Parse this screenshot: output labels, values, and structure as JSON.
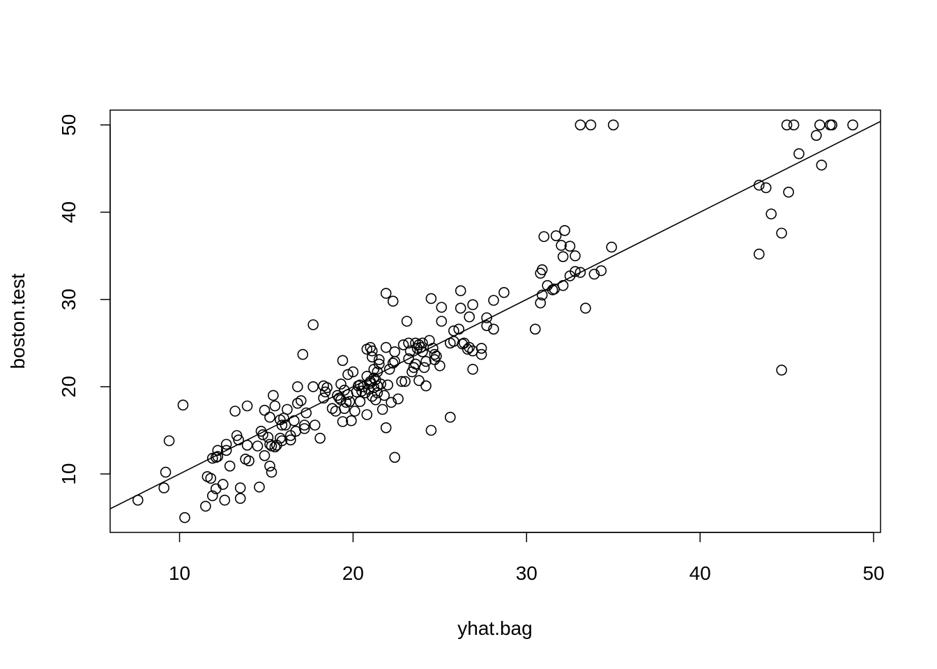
{
  "chart_data": {
    "type": "scatter",
    "title": "",
    "xlabel": "yhat.bag",
    "ylabel": "boston.test",
    "xlim": [
      6,
      50.4
    ],
    "ylim": [
      3.3,
      51.7
    ],
    "xticks": [
      10,
      20,
      30,
      40,
      50
    ],
    "yticks": [
      10,
      20,
      30,
      40,
      50
    ],
    "grid": false,
    "reference_line": {
      "type": "abline",
      "intercept": 0,
      "slope": 1
    },
    "marker": "open-circle",
    "points": [
      [
        7.6,
        7.0
      ],
      [
        9.1,
        8.4
      ],
      [
        9.2,
        10.2
      ],
      [
        9.4,
        13.8
      ],
      [
        10.2,
        17.9
      ],
      [
        10.3,
        5.0
      ],
      [
        11.5,
        6.3
      ],
      [
        11.6,
        9.7
      ],
      [
        11.8,
        9.5
      ],
      [
        11.9,
        7.5
      ],
      [
        11.9,
        11.8
      ],
      [
        12.1,
        8.3
      ],
      [
        12.1,
        11.9
      ],
      [
        12.2,
        12.0
      ],
      [
        12.2,
        12.7
      ],
      [
        12.5,
        8.8
      ],
      [
        12.6,
        7.0
      ],
      [
        12.7,
        12.7
      ],
      [
        12.7,
        13.4
      ],
      [
        12.9,
        10.9
      ],
      [
        13.2,
        17.2
      ],
      [
        13.3,
        14.4
      ],
      [
        13.4,
        13.9
      ],
      [
        13.5,
        7.2
      ],
      [
        13.5,
        8.4
      ],
      [
        13.8,
        11.7
      ],
      [
        13.9,
        13.3
      ],
      [
        13.9,
        17.8
      ],
      [
        14.0,
        11.5
      ],
      [
        14.5,
        13.2
      ],
      [
        14.6,
        8.5
      ],
      [
        14.7,
        14.9
      ],
      [
        14.8,
        14.5
      ],
      [
        14.9,
        17.3
      ],
      [
        14.9,
        12.1
      ],
      [
        15.1,
        14.2
      ],
      [
        15.2,
        16.5
      ],
      [
        15.2,
        13.4
      ],
      [
        15.2,
        10.9
      ],
      [
        15.3,
        10.2
      ],
      [
        15.3,
        13.2
      ],
      [
        15.4,
        19.0
      ],
      [
        15.5,
        17.8
      ],
      [
        15.5,
        13.1
      ],
      [
        15.6,
        13.3
      ],
      [
        15.8,
        16.2
      ],
      [
        15.8,
        14.1
      ],
      [
        15.9,
        15.6
      ],
      [
        15.9,
        13.8
      ],
      [
        16.0,
        16.4
      ],
      [
        16.1,
        15.6
      ],
      [
        16.2,
        17.4
      ],
      [
        16.4,
        14.4
      ],
      [
        16.4,
        13.9
      ],
      [
        16.6,
        16.1
      ],
      [
        16.7,
        14.9
      ],
      [
        16.8,
        20.0
      ],
      [
        16.8,
        18.1
      ],
      [
        17.0,
        18.4
      ],
      [
        17.1,
        23.7
      ],
      [
        17.2,
        15.2
      ],
      [
        17.2,
        15.6
      ],
      [
        17.3,
        17.0
      ],
      [
        17.7,
        27.1
      ],
      [
        17.7,
        20.0
      ],
      [
        17.8,
        15.6
      ],
      [
        18.1,
        14.1
      ],
      [
        18.3,
        20.1
      ],
      [
        18.3,
        18.7
      ],
      [
        18.4,
        19.4
      ],
      [
        18.5,
        19.9
      ],
      [
        18.8,
        17.5
      ],
      [
        19.0,
        17.2
      ],
      [
        19.1,
        19.0
      ],
      [
        19.2,
        18.7
      ],
      [
        19.3,
        18.5
      ],
      [
        19.3,
        20.3
      ],
      [
        19.4,
        23.0
      ],
      [
        19.4,
        16.0
      ],
      [
        19.5,
        17.5
      ],
      [
        19.5,
        19.6
      ],
      [
        19.6,
        18.2
      ],
      [
        19.7,
        21.4
      ],
      [
        19.7,
        19.1
      ],
      [
        19.8,
        18.3
      ],
      [
        19.9,
        16.1
      ],
      [
        20.0,
        21.7
      ],
      [
        20.1,
        17.2
      ],
      [
        20.2,
        19.4
      ],
      [
        20.3,
        20.1
      ],
      [
        20.4,
        18.3
      ],
      [
        20.4,
        20.2
      ],
      [
        20.5,
        19.5
      ],
      [
        20.6,
        20.0
      ],
      [
        20.7,
        19.3
      ],
      [
        20.8,
        16.8
      ],
      [
        20.8,
        24.3
      ],
      [
        20.8,
        21.2
      ],
      [
        20.9,
        19.7
      ],
      [
        21.0,
        24.5
      ],
      [
        21.0,
        20.6
      ],
      [
        21.0,
        20.4
      ],
      [
        21.1,
        18.9
      ],
      [
        21.1,
        24.1
      ],
      [
        21.1,
        23.4
      ],
      [
        21.2,
        22.0
      ],
      [
        21.2,
        21.0
      ],
      [
        21.2,
        19.9
      ],
      [
        21.3,
        20.8
      ],
      [
        21.3,
        18.5
      ],
      [
        21.4,
        20.1
      ],
      [
        21.4,
        21.7
      ],
      [
        21.4,
        19.3
      ],
      [
        21.5,
        23.1
      ],
      [
        21.5,
        22.6
      ],
      [
        21.6,
        20.3
      ],
      [
        21.7,
        17.4
      ],
      [
        21.8,
        19.0
      ],
      [
        21.9,
        15.3
      ],
      [
        21.9,
        30.7
      ],
      [
        21.9,
        24.5
      ],
      [
        22.0,
        20.2
      ],
      [
        22.1,
        22.0
      ],
      [
        22.2,
        18.2
      ],
      [
        22.3,
        29.8
      ],
      [
        22.3,
        22.7
      ],
      [
        22.4,
        22.9
      ],
      [
        22.4,
        24.0
      ],
      [
        22.4,
        11.9
      ],
      [
        22.6,
        18.6
      ],
      [
        22.8,
        20.6
      ],
      [
        22.9,
        24.8
      ],
      [
        23.0,
        20.6
      ],
      [
        23.1,
        27.5
      ],
      [
        23.2,
        23.2
      ],
      [
        23.2,
        25.0
      ],
      [
        23.3,
        24.1
      ],
      [
        23.4,
        21.7
      ],
      [
        23.5,
        22.2
      ],
      [
        23.6,
        25.0
      ],
      [
        23.6,
        22.6
      ],
      [
        23.7,
        24.4
      ],
      [
        23.8,
        24.8
      ],
      [
        23.8,
        20.7
      ],
      [
        23.9,
        24.5
      ],
      [
        24.0,
        24.0
      ],
      [
        24.0,
        25.0
      ],
      [
        24.1,
        22.2
      ],
      [
        24.2,
        22.9
      ],
      [
        24.2,
        20.1
      ],
      [
        24.4,
        25.3
      ],
      [
        24.5,
        15.0
      ],
      [
        24.5,
        30.1
      ],
      [
        24.6,
        24.4
      ],
      [
        24.7,
        23.7
      ],
      [
        24.7,
        23.1
      ],
      [
        24.8,
        23.5
      ],
      [
        25.0,
        22.4
      ],
      [
        25.1,
        27.5
      ],
      [
        25.1,
        29.1
      ],
      [
        25.6,
        25.0
      ],
      [
        25.6,
        16.5
      ],
      [
        25.8,
        26.4
      ],
      [
        25.8,
        25.2
      ],
      [
        26.1,
        26.6
      ],
      [
        26.2,
        31.0
      ],
      [
        26.2,
        29.0
      ],
      [
        26.3,
        24.9
      ],
      [
        26.4,
        25.0
      ],
      [
        26.6,
        24.3
      ],
      [
        26.7,
        28.0
      ],
      [
        26.7,
        24.5
      ],
      [
        26.9,
        24.1
      ],
      [
        26.9,
        29.4
      ],
      [
        26.9,
        22.0
      ],
      [
        27.4,
        24.4
      ],
      [
        27.4,
        23.7
      ],
      [
        27.7,
        27.9
      ],
      [
        27.7,
        27.0
      ],
      [
        28.1,
        29.9
      ],
      [
        28.1,
        26.6
      ],
      [
        28.7,
        30.8
      ],
      [
        30.5,
        26.6
      ],
      [
        30.8,
        33.0
      ],
      [
        30.8,
        29.6
      ],
      [
        30.9,
        33.4
      ],
      [
        30.9,
        30.5
      ],
      [
        31.0,
        37.2
      ],
      [
        31.2,
        31.6
      ],
      [
        31.5,
        31.1
      ],
      [
        31.6,
        31.2
      ],
      [
        31.7,
        37.3
      ],
      [
        32.0,
        36.2
      ],
      [
        32.1,
        31.6
      ],
      [
        32.1,
        34.9
      ],
      [
        32.2,
        37.9
      ],
      [
        32.5,
        32.7
      ],
      [
        32.5,
        36.1
      ],
      [
        32.8,
        33.2
      ],
      [
        32.8,
        35.0
      ],
      [
        33.1,
        50.0
      ],
      [
        33.1,
        33.1
      ],
      [
        33.4,
        29.0
      ],
      [
        33.7,
        50.0
      ],
      [
        33.9,
        32.9
      ],
      [
        34.3,
        33.3
      ],
      [
        34.9,
        36.0
      ],
      [
        35.0,
        50.0
      ],
      [
        43.4,
        35.2
      ],
      [
        43.4,
        43.1
      ],
      [
        43.8,
        42.8
      ],
      [
        44.1,
        39.8
      ],
      [
        44.7,
        37.6
      ],
      [
        44.7,
        21.9
      ],
      [
        45.0,
        50.0
      ],
      [
        45.1,
        42.3
      ],
      [
        45.4,
        50.0
      ],
      [
        45.7,
        46.7
      ],
      [
        46.7,
        48.8
      ],
      [
        46.9,
        50.0
      ],
      [
        47.0,
        45.4
      ],
      [
        47.5,
        50.0
      ],
      [
        47.6,
        50.0
      ],
      [
        48.8,
        50.0
      ]
    ]
  }
}
